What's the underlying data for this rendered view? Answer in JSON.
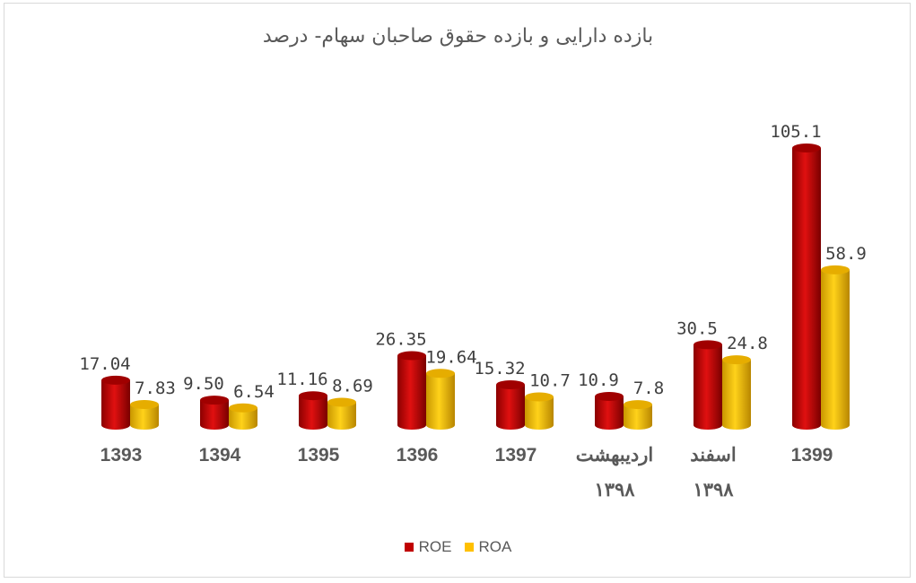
{
  "chart_data": {
    "type": "bar",
    "title": "بازده دارایی و بازده حقوق صاحبان سهام- درصد",
    "categories": [
      [
        "1393"
      ],
      [
        "1394"
      ],
      [
        "1395"
      ],
      [
        "1396"
      ],
      [
        "1397"
      ],
      [
        "اردیبهشت",
        "۱۳۹۸"
      ],
      [
        "اسفند",
        "۱۳۹۸"
      ],
      [
        "1399"
      ]
    ],
    "series": [
      {
        "name": "ROE",
        "color": "#c00000",
        "values": [
          17.04,
          9.5,
          11.16,
          26.35,
          15.32,
          10.9,
          30.5,
          105.1
        ],
        "labels": [
          "17.04",
          "9.50",
          "11.16",
          "26.35",
          "15.32",
          "10.9",
          "30.5",
          "105.1"
        ]
      },
      {
        "name": "ROA",
        "color": "#ffc000",
        "values": [
          7.83,
          6.54,
          8.69,
          19.64,
          10.7,
          7.8,
          24.8,
          58.9
        ],
        "labels": [
          "7.83",
          "6.54",
          "8.69",
          "19.64",
          "10.7",
          "7.8",
          "24.8",
          "58.9"
        ]
      }
    ],
    "ylim": [
      0,
      105.1
    ],
    "grid": false,
    "legend_position": "bottom"
  }
}
